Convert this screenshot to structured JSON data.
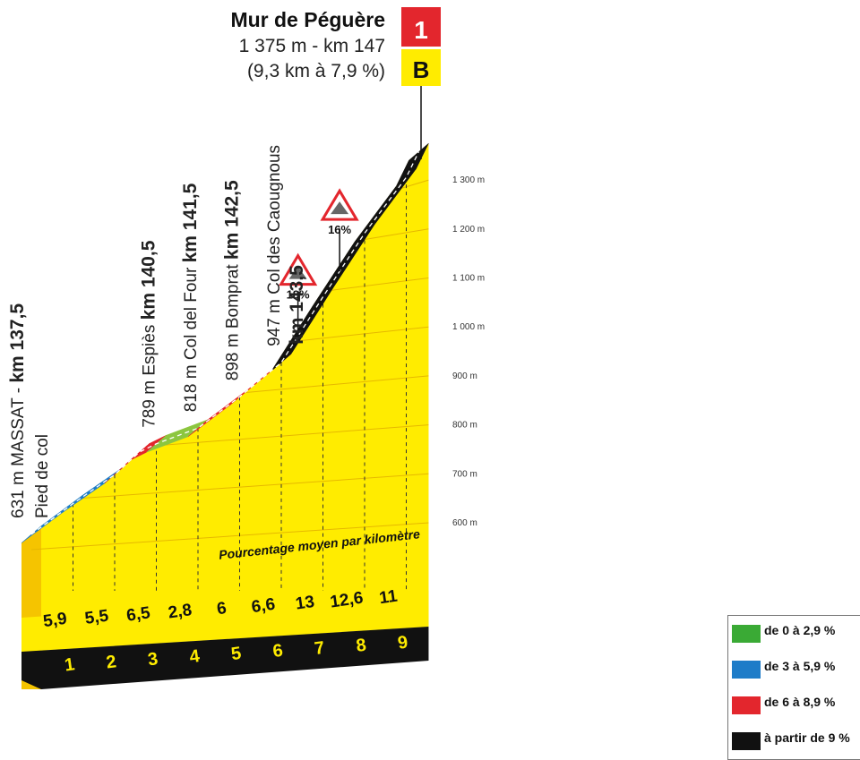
{
  "summit": {
    "name": "Mur de Péguère",
    "details": "1 375 m - km 147",
    "stats": "(9,3 km à 7,9 %)",
    "category": "1",
    "bonus": "B"
  },
  "chart_data": {
    "type": "area",
    "title": "",
    "xlabel": "Pourcentage moyen par kilomètre",
    "ylabel": "",
    "x": [
      0,
      1,
      2,
      2.6,
      3,
      4,
      5,
      6,
      7,
      8,
      9,
      9.3
    ],
    "y": [
      631,
      690,
      745,
      789,
      804,
      832,
      892,
      958,
      1088,
      1214,
      1324,
      1375
    ],
    "ylim": [
      500,
      1380
    ],
    "xlim": [
      0,
      9.3
    ],
    "km_ticks": [
      "1",
      "2",
      "3",
      "4",
      "5",
      "6",
      "7",
      "8",
      "9"
    ],
    "elevation_ticks": [
      {
        "value": 600,
        "label": "600 m"
      },
      {
        "value": 700,
        "label": "700 m"
      },
      {
        "value": 800,
        "label": "800 m"
      },
      {
        "value": 900,
        "label": "900 m"
      },
      {
        "value": 1000,
        "label": "1 000 m"
      },
      {
        "value": 1100,
        "label": "1 100 m"
      },
      {
        "value": 1200,
        "label": "1 200 m"
      },
      {
        "value": 1300,
        "label": "1 300 m"
      }
    ],
    "gradients": [
      {
        "km": 1,
        "percent": "5,9",
        "category": "blue"
      },
      {
        "km": 2,
        "percent": "5,5",
        "category": "blue"
      },
      {
        "km": 3,
        "percent": "6,5",
        "category": "red"
      },
      {
        "km": 4,
        "percent": "2,8",
        "category": "green"
      },
      {
        "km": 5,
        "percent": "6",
        "category": "red"
      },
      {
        "km": 6,
        "percent": "6,6",
        "category": "red"
      },
      {
        "km": 7,
        "percent": "13",
        "category": "black"
      },
      {
        "km": 8,
        "percent": "12,6",
        "category": "black"
      },
      {
        "km": 9,
        "percent": "11",
        "category": "black"
      }
    ],
    "waypoints": [
      {
        "km_pos": 0,
        "label": "631 m MASSAT - ",
        "km": "km 137,5",
        "sublabel": "Pied de col"
      },
      {
        "km_pos": 3,
        "label": "789 m Espiès ",
        "km": "km 140,5",
        "sublabel": ""
      },
      {
        "km_pos": 4,
        "label": "818 m Col del Four ",
        "km": "km 141,5",
        "sublabel": ""
      },
      {
        "km_pos": 5,
        "label": "898 m Bomprat ",
        "km": "km 142,5",
        "sublabel": ""
      },
      {
        "km_pos": 6,
        "label": "947 m Col des Caougnous",
        "km": "km 143,5",
        "sublabel": ""
      }
    ],
    "steep_signs": [
      {
        "at_km": 6.4,
        "label": "18%"
      },
      {
        "at_km": 7.4,
        "label": "16%"
      }
    ]
  },
  "legend": [
    {
      "label": "de 0 à 2,9 %",
      "color": "#3aaa35"
    },
    {
      "label": "de 3 à 5,9 %",
      "color": "#1e7cc8"
    },
    {
      "label": "de 6 à 8,9 %",
      "color": "#e3262d"
    },
    {
      "label": "à partir de 9 %",
      "color": "#111111"
    }
  ],
  "colors": {
    "fill": "#ffec00",
    "fill_side": "#f5c400",
    "base": "#111111",
    "green": "#8cc63f",
    "blue": "#1e7cc8",
    "red": "#e3262d",
    "black": "#111111",
    "category_red": "#e3262d",
    "bonus_yellow": "#ffec00"
  }
}
